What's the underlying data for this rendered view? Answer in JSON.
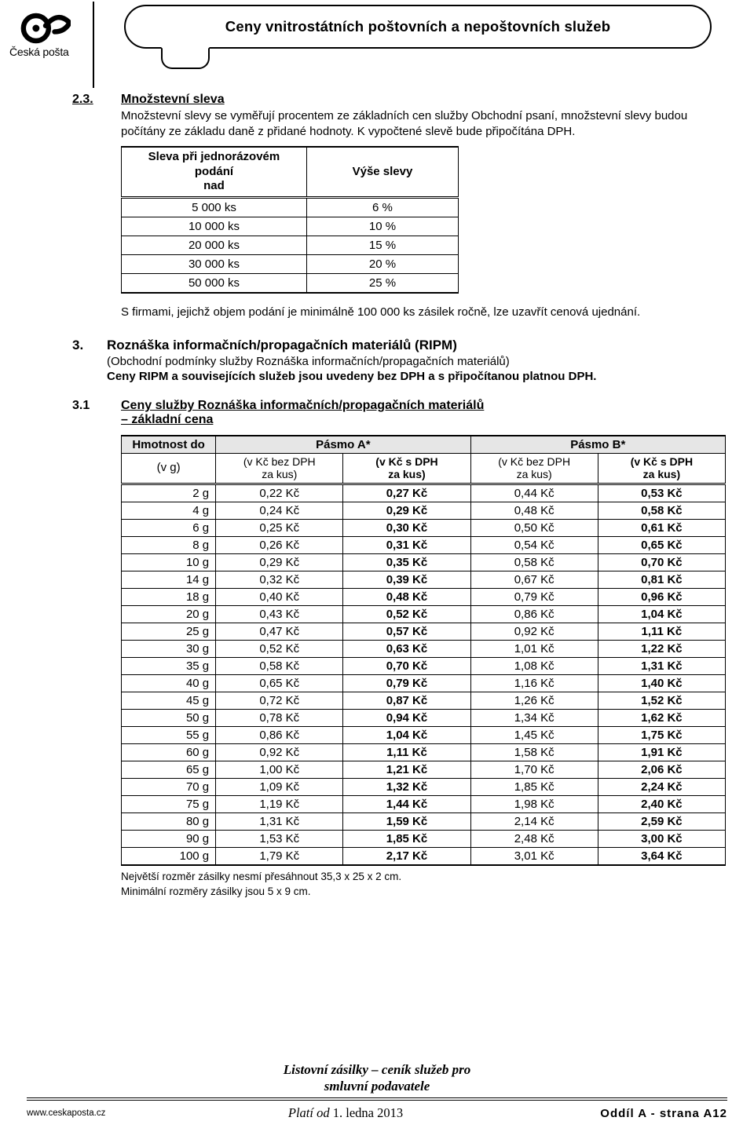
{
  "header": {
    "brand": "Česká pošta",
    "title": "Ceny vnitrostátních poštovních a nepoštovních služeb"
  },
  "sec23": {
    "num": "2.3.",
    "title": "Množstevní sleva",
    "para": "Množstevní slevy se vyměřují procentem ze základních cen služby Obchodní psaní, množstevní slevy budou počítány ze základu daně z přidané hodnoty. K vypočtené slevě bude připočítána DPH.",
    "table": {
      "head_left": "Sleva při jednorázovém podání\nnad",
      "head_right": "Výše slevy",
      "rows": [
        [
          "5 000 ks",
          "6 %"
        ],
        [
          "10 000 ks",
          "10 %"
        ],
        [
          "20 000 ks",
          "15 %"
        ],
        [
          "30 000 ks",
          "20 %"
        ],
        [
          "50 000 ks",
          "25 %"
        ]
      ]
    },
    "note": "S firmami, jejichž objem podání je minimálně 100 000 ks zásilek ročně, lze uzavřít cenová ujednání."
  },
  "sec3": {
    "num": "3.",
    "title": "Roznáška informačních/propagačních materiálů (RIPM)",
    "sub1": "(Obchodní podmínky služby Roznáška informačních/propagačních materiálů)",
    "sub2": "Ceny RIPM a souvisejících služeb jsou uvedeny bez DPH a s připočítanou platnou DPH."
  },
  "sec31": {
    "num": "3.1",
    "title1": "Ceny služby Roznáška informačních/propagačních materiálů",
    "title2": "– základní cena",
    "header": {
      "hmotnost": "Hmotnost do",
      "vg": "(v g)",
      "pasmoA": "Pásmo A*",
      "pasmoB": "Pásmo B*",
      "bez": "(v Kč bez DPH\nza kus)",
      "s": "(v Kč s DPH\nza kus)"
    },
    "rows": [
      [
        "2 g",
        "0,22 Kč",
        "0,27 Kč",
        "0,44 Kč",
        "0,53 Kč"
      ],
      [
        "4 g",
        "0,24 Kč",
        "0,29 Kč",
        "0,48 Kč",
        "0,58 Kč"
      ],
      [
        "6 g",
        "0,25 Kč",
        "0,30 Kč",
        "0,50 Kč",
        "0,61 Kč"
      ],
      [
        "8 g",
        "0,26 Kč",
        "0,31 Kč",
        "0,54 Kč",
        "0,65 Kč"
      ],
      [
        "10 g",
        "0,29 Kč",
        "0,35 Kč",
        "0,58 Kč",
        "0,70 Kč"
      ],
      [
        "14 g",
        "0,32 Kč",
        "0,39 Kč",
        "0,67 Kč",
        "0,81 Kč"
      ],
      [
        "18 g",
        "0,40 Kč",
        "0,48 Kč",
        "0,79 Kč",
        "0,96 Kč"
      ],
      [
        "20 g",
        "0,43 Kč",
        "0,52 Kč",
        "0,86 Kč",
        "1,04 Kč"
      ],
      [
        "25 g",
        "0,47 Kč",
        "0,57 Kč",
        "0,92 Kč",
        "1,11 Kč"
      ],
      [
        "30 g",
        "0,52 Kč",
        "0,63 Kč",
        "1,01 Kč",
        "1,22 Kč"
      ],
      [
        "35 g",
        "0,58 Kč",
        "0,70 Kč",
        "1,08 Kč",
        "1,31 Kč"
      ],
      [
        "40 g",
        "0,65 Kč",
        "0,79 Kč",
        "1,16 Kč",
        "1,40 Kč"
      ],
      [
        "45 g",
        "0,72 Kč",
        "0,87 Kč",
        "1,26 Kč",
        "1,52 Kč"
      ],
      [
        "50 g",
        "0,78 Kč",
        "0,94 Kč",
        "1,34 Kč",
        "1,62 Kč"
      ],
      [
        "55 g",
        "0,86 Kč",
        "1,04 Kč",
        "1,45 Kč",
        "1,75 Kč"
      ],
      [
        "60 g",
        "0,92 Kč",
        "1,11 Kč",
        "1,58 Kč",
        "1,91 Kč"
      ],
      [
        "65 g",
        "1,00 Kč",
        "1,21 Kč",
        "1,70 Kč",
        "2,06 Kč"
      ],
      [
        "70 g",
        "1,09 Kč",
        "1,32 Kč",
        "1,85 Kč",
        "2,24 Kč"
      ],
      [
        "75 g",
        "1,19 Kč",
        "1,44 Kč",
        "1,98 Kč",
        "2,40 Kč"
      ],
      [
        "80 g",
        "1,31 Kč",
        "1,59 Kč",
        "2,14 Kč",
        "2,59 Kč"
      ],
      [
        "90 g",
        "1,53 Kč",
        "1,85 Kč",
        "2,48 Kč",
        "3,00 Kč"
      ],
      [
        "100 g",
        "1,79 Kč",
        "2,17 Kč",
        "3,01 Kč",
        "3,64 Kč"
      ]
    ],
    "note1": "Největší rozměr zásilky nesmí přesáhnout 35,3 x 25 x 2 cm.",
    "note2": "Minimální rozměry zásilky jsou 5 x 9 cm."
  },
  "footer": {
    "center1": "Listovní zásilky – ceník služeb pro",
    "center2": "smluvní podavatele",
    "url": "www.ceskaposta.cz",
    "mid_it": "Platí od",
    "mid_rest": " 1. ledna 2013",
    "right": "Oddíl A - strana A12"
  }
}
